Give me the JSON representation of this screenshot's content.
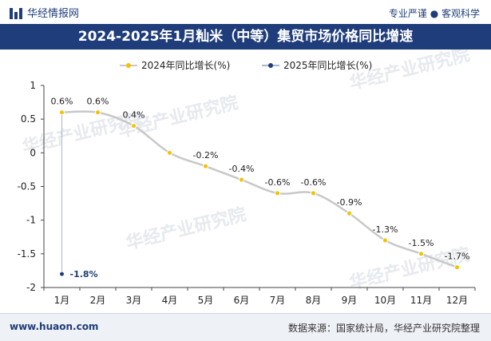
{
  "header": {
    "brand": "华经情报网",
    "tagline": "专业严谨 ● 客观科学",
    "title": "2024-2025年1月籼米（中等）集贸市场价格同比增速"
  },
  "footer": {
    "site": "www.huaon.com",
    "source": "数据来源：国家统计局，华经产业研究院整理"
  },
  "watermark": "华经产业研究院",
  "chart_data": {
    "type": "line",
    "categories": [
      "1月",
      "2月",
      "3月",
      "4月",
      "5月",
      "6月",
      "7月",
      "8月",
      "9月",
      "10月",
      "11月",
      "12月"
    ],
    "ylim": [
      -2,
      1
    ],
    "yticks": [
      "1",
      "0.5",
      "0",
      "-0.5",
      "-1",
      "-1.5",
      "-2"
    ],
    "ytick_values": [
      1,
      0.5,
      0,
      -0.5,
      -1,
      -1.5,
      -2
    ],
    "legend_position": "top-center",
    "series": [
      {
        "name": "2024年同比增长(%)",
        "color": "#f2c200",
        "line_color": "#c8c8c8",
        "values": [
          0.6,
          0.6,
          0.4,
          0,
          -0.2,
          -0.4,
          -0.6,
          -0.6,
          -0.9,
          -1.3,
          -1.5,
          -1.7
        ],
        "labels": [
          "0.6%",
          "0.6%",
          "0.4%",
          "",
          "-0.2%",
          "-0.4%",
          "-0.6%",
          "-0.6%",
          "-0.9%",
          "-1.3%",
          "-1.5%",
          "-1.7%"
        ]
      },
      {
        "name": "2025年同比增长(%)",
        "color": "#1f3d7a",
        "line_color": "#a9b6cc",
        "values": [
          -1.8,
          null,
          null,
          null,
          null,
          null,
          null,
          null,
          null,
          null,
          null,
          null
        ],
        "labels": [
          "-1.8%",
          "",
          "",
          "",
          "",
          "",
          "",
          "",
          "",
          "",
          "",
          ""
        ]
      }
    ]
  }
}
